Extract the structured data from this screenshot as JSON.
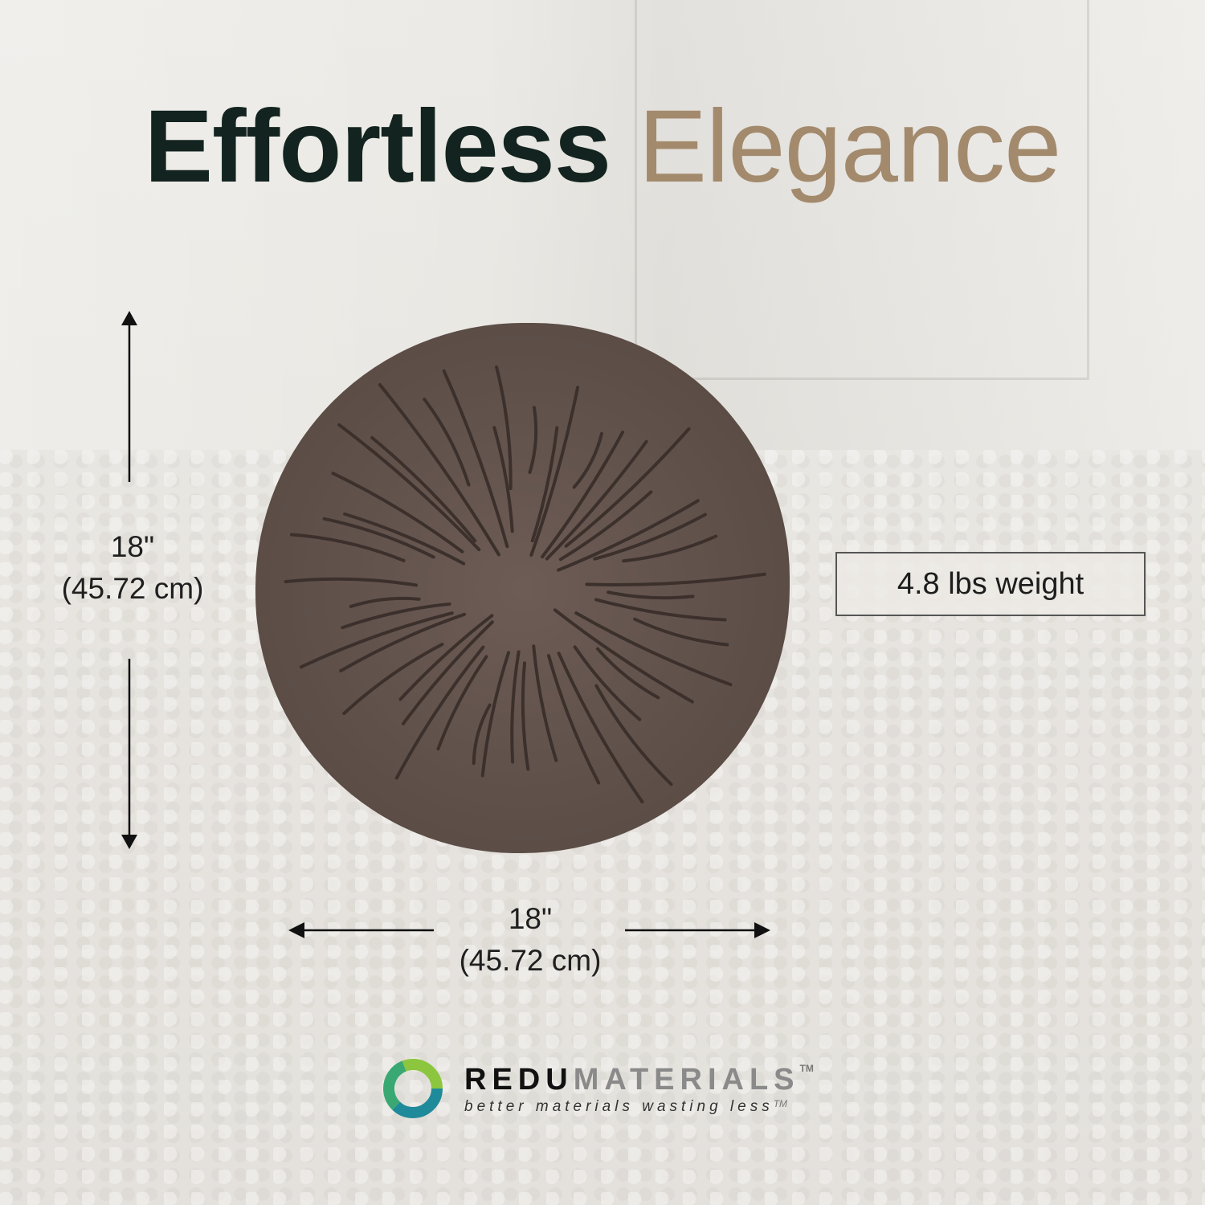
{
  "title": {
    "part1": "Effortless",
    "part2": "Elegance"
  },
  "colors": {
    "title_dark": "#132420",
    "title_accent": "#a38a6c",
    "stone": "#5e4f49"
  },
  "dimensions": {
    "height": {
      "inches": "18\"",
      "cm": "(45.72 cm)"
    },
    "width": {
      "inches": "18\"",
      "cm": "(45.72 cm)"
    }
  },
  "weight": "4.8 lbs weight",
  "logo": {
    "brand_bold": "REDU",
    "brand_light": "MATERIALS",
    "tm": "TM",
    "tagline": "better materials wasting less",
    "tagline_tm": "TM"
  },
  "icons": {
    "logo_mark": "swirl-ring-icon",
    "arrows": "double-arrow-icon"
  }
}
